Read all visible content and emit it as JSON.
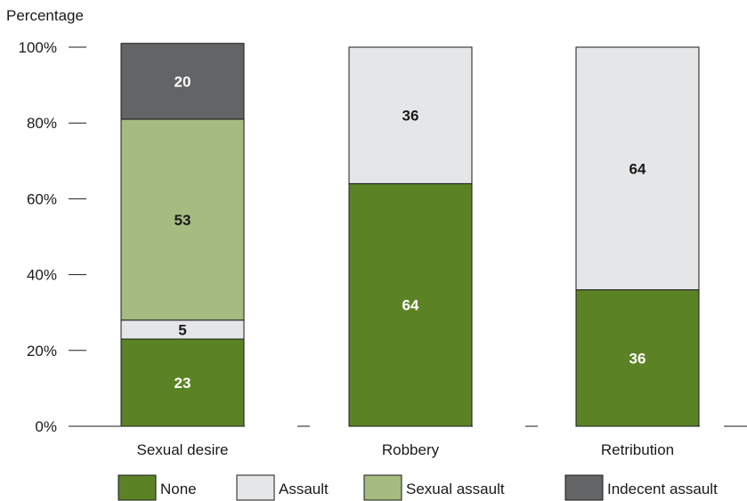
{
  "chart_data": {
    "type": "bar",
    "stacked": true,
    "ylabel": "Percentage",
    "xlabel": "",
    "ylim": [
      0,
      100
    ],
    "y_ticks": [
      {
        "value": 0,
        "label": "0%"
      },
      {
        "value": 20,
        "label": "20%"
      },
      {
        "value": 40,
        "label": "40%"
      },
      {
        "value": 60,
        "label": "60%"
      },
      {
        "value": 80,
        "label": "80%"
      },
      {
        "value": 100,
        "label": "100%"
      }
    ],
    "categories": [
      "Sexual desire",
      "Robbery",
      "Retribution"
    ],
    "series": [
      {
        "name": "None",
        "color": "#5b8325",
        "label_color": "#ffffff",
        "values": [
          23,
          64,
          36
        ]
      },
      {
        "name": "Assault",
        "color": "#e5e6e8",
        "label_color": "#1a1a1a",
        "values": [
          5,
          36,
          64
        ]
      },
      {
        "name": "Sexual assault",
        "color": "#a5bb80",
        "label_color": "#1a1a1a",
        "values": [
          53,
          0,
          0
        ]
      },
      {
        "name": "Indecent assault",
        "color": "#636466",
        "label_color": "#ffffff",
        "values": [
          20,
          0,
          0
        ]
      }
    ],
    "grid": false,
    "legend_position": "bottom"
  }
}
